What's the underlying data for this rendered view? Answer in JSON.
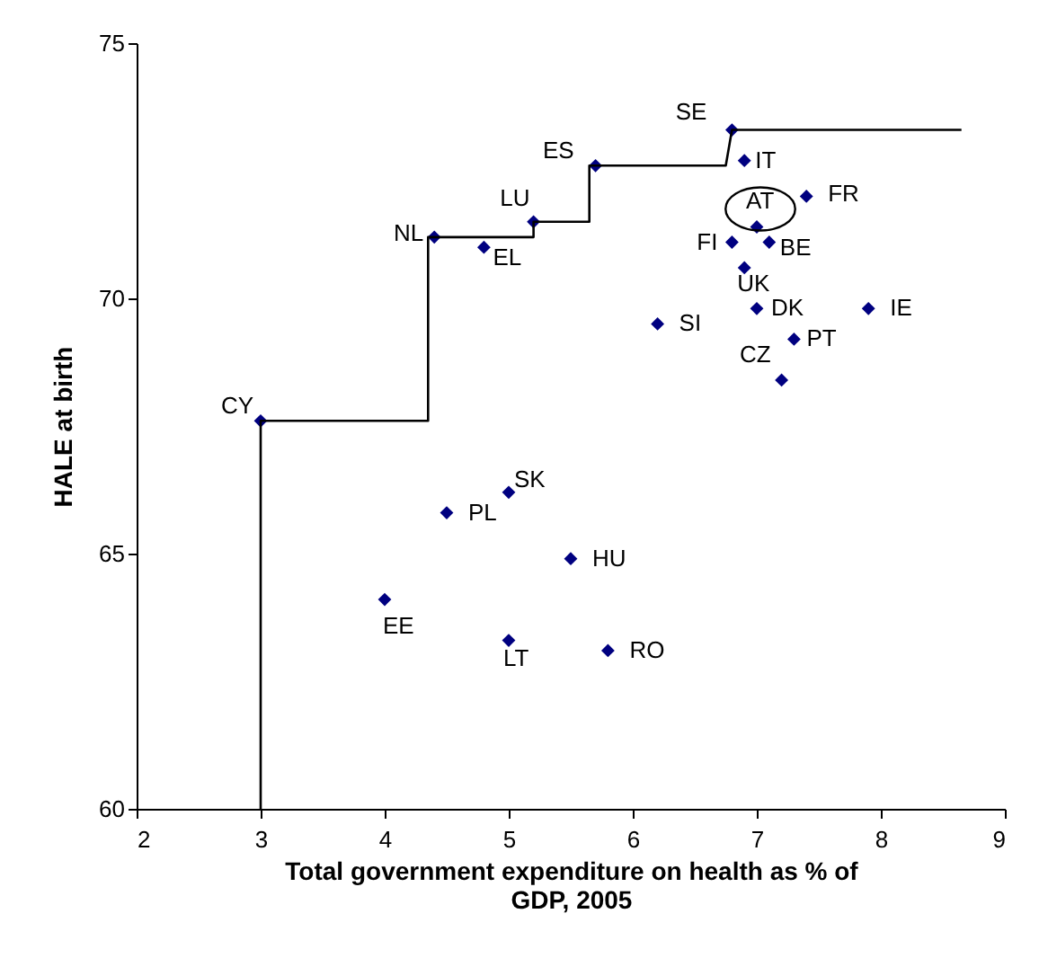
{
  "chart_data": {
    "type": "scatter",
    "xlabel": "Total government expenditure on health as % of GDP, 2005",
    "ylabel": "HALE at birth",
    "xlim": [
      2,
      9
    ],
    "xticks": [
      2,
      3,
      4,
      5,
      6,
      7,
      8,
      9
    ],
    "ylim": [
      60,
      75
    ],
    "yticks": [
      60,
      65,
      70,
      75
    ],
    "grid": false,
    "series": [
      {
        "color": "#000080",
        "marker": "diamond",
        "x": [
          6.8,
          6.9,
          5.7,
          7.4,
          7.0,
          6.8,
          7.1,
          6.9,
          7.0,
          7.9,
          6.2,
          7.3,
          7.2,
          5.2,
          4.4,
          4.8,
          3.0,
          5.0,
          4.5,
          5.5,
          4.0,
          5.0,
          5.8
        ],
        "values": [
          73.3,
          72.7,
          72.6,
          72.0,
          71.4,
          71.1,
          71.1,
          70.6,
          69.8,
          69.8,
          69.5,
          69.2,
          68.4,
          71.5,
          71.2,
          71.0,
          67.6,
          66.2,
          65.8,
          64.9,
          64.1,
          63.3,
          63.1
        ]
      },
      {
        "type": "line",
        "color": "#000000",
        "marker": "none",
        "line_style": "solid",
        "x": [
          3,
          3,
          4.35,
          4.35,
          5.2,
          5.2,
          5.65,
          5.65,
          6.75,
          6.8,
          8.65
        ],
        "values": [
          60,
          67.6,
          67.6,
          71.2,
          71.2,
          71.5,
          71.5,
          72.6,
          72.6,
          73.3,
          73.3
        ]
      }
    ],
    "annotations": [
      {
        "text": "SE",
        "x": 6.8,
        "y": 73.3
      },
      {
        "text": "IT",
        "x": 6.9,
        "y": 72.7
      },
      {
        "text": "ES",
        "x": 5.7,
        "y": 72.6
      },
      {
        "text": "FR",
        "x": 7.4,
        "y": 72.0
      },
      {
        "text": "AT",
        "x": 7.0,
        "y": 71.4
      },
      {
        "text": "FI",
        "x": 6.8,
        "y": 71.1
      },
      {
        "text": "BE",
        "x": 7.1,
        "y": 71.1
      },
      {
        "text": "UK",
        "x": 6.9,
        "y": 70.6
      },
      {
        "text": "DK",
        "x": 7.0,
        "y": 69.8
      },
      {
        "text": "IE",
        "x": 7.9,
        "y": 69.8
      },
      {
        "text": "SI",
        "x": 6.2,
        "y": 69.5
      },
      {
        "text": "PT",
        "x": 7.3,
        "y": 69.2
      },
      {
        "text": "CZ",
        "x": 7.2,
        "y": 68.4
      },
      {
        "text": "LU",
        "x": 5.2,
        "y": 71.5
      },
      {
        "text": "NL",
        "x": 4.4,
        "y": 71.2
      },
      {
        "text": "EL",
        "x": 4.8,
        "y": 71.0
      },
      {
        "text": "CY",
        "x": 3.0,
        "y": 67.6
      },
      {
        "text": "SK",
        "x": 5.0,
        "y": 66.2
      },
      {
        "text": "PL",
        "x": 4.5,
        "y": 65.8
      },
      {
        "text": "HU",
        "x": 5.5,
        "y": 64.9
      },
      {
        "text": "EE",
        "x": 4.0,
        "y": 64.1
      },
      {
        "text": "LT",
        "x": 5.0,
        "y": 63.3
      },
      {
        "text": "RO",
        "x": 5.8,
        "y": 63.1
      }
    ]
  }
}
